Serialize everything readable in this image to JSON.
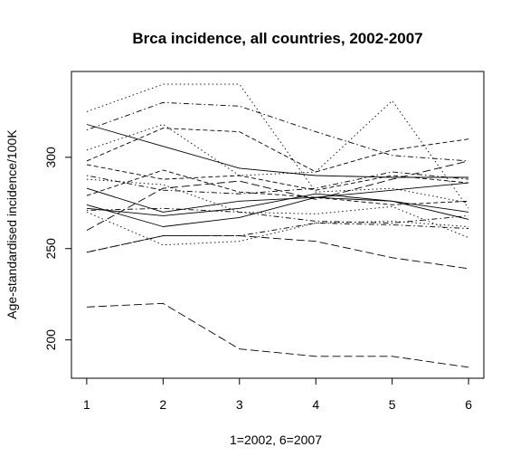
{
  "chart_data": {
    "type": "line",
    "title": "Brca incidence, all countries, 2002-2007",
    "xlabel": "1=2002, 6=2007",
    "ylabel": "Age-standardised incidence/100K",
    "x": [
      1,
      2,
      3,
      4,
      5,
      6
    ],
    "xticks": [
      1,
      2,
      3,
      4,
      5,
      6
    ],
    "yticks": [
      200,
      250,
      300
    ],
    "xlim": [
      0.8,
      6.2
    ],
    "ylim": [
      179,
      347
    ],
    "grid": false,
    "legend": "none",
    "line_color": "#000000",
    "series": [
      {
        "values": [
          318,
          306,
          294,
          290,
          289,
          289
        ],
        "style": "solid"
      },
      {
        "values": [
          283,
          270,
          276,
          278,
          276,
          270
        ],
        "style": "solid"
      },
      {
        "values": [
          274,
          262,
          267,
          278,
          282,
          286
        ],
        "style": "solid"
      },
      {
        "values": [
          272,
          268,
          272,
          280,
          276,
          266
        ],
        "style": "solid"
      },
      {
        "values": [
          325,
          340,
          340,
          281,
          283,
          275
        ],
        "style": "dotted"
      },
      {
        "values": [
          304,
          318,
          290,
          292,
          331,
          272
        ],
        "style": "dotted"
      },
      {
        "values": [
          288,
          285,
          270,
          269,
          273,
          256
        ],
        "style": "dotted"
      },
      {
        "values": [
          270,
          252,
          254,
          264,
          265,
          262
        ],
        "style": "dotted"
      },
      {
        "values": [
          298,
          316,
          314,
          292,
          304,
          310
        ],
        "style": "dashed"
      },
      {
        "values": [
          296,
          288,
          290,
          282,
          290,
          286
        ],
        "style": "dashed"
      },
      {
        "values": [
          279,
          293,
          281,
          278,
          274,
          276
        ],
        "style": "dashed"
      },
      {
        "values": [
          218,
          220,
          195,
          191,
          191,
          185
        ],
        "style": "longdash"
      },
      {
        "values": [
          260,
          283,
          287,
          277,
          288,
          298
        ],
        "style": "longdash"
      },
      {
        "values": [
          248,
          257,
          257,
          254,
          245,
          239
        ],
        "style": "longdash"
      },
      {
        "values": [
          315,
          330,
          328,
          314,
          301,
          298
        ],
        "style": "dotdash"
      },
      {
        "values": [
          290,
          282,
          280,
          283,
          292,
          288
        ],
        "style": "dotdash"
      },
      {
        "values": [
          248,
          257,
          257,
          264,
          263,
          261
        ],
        "style": "dotdash"
      },
      {
        "values": [
          271,
          272,
          270,
          265,
          264,
          268
        ],
        "style": "dotdash"
      }
    ]
  }
}
